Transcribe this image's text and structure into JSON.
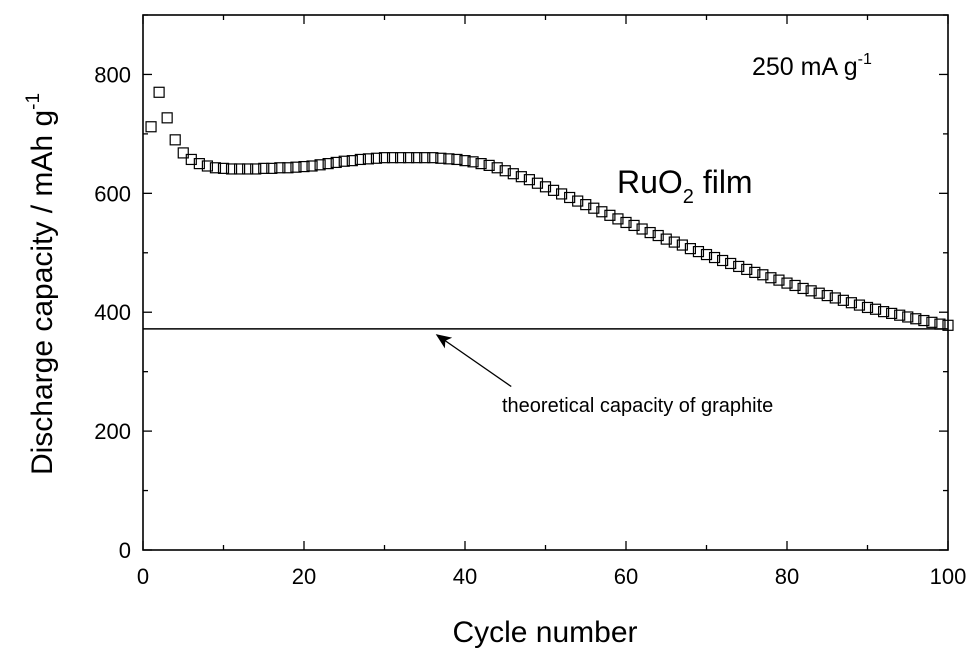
{
  "chart_data": {
    "type": "scatter",
    "xlabel": "Cycle number",
    "ylabel": "Discharge capacity / mAh g",
    "ylabel_superscript": "-1",
    "xlim": [
      0,
      100
    ],
    "ylim": [
      0,
      900
    ],
    "x_ticks": [
      "0",
      "20",
      "40",
      "60",
      "80",
      "100"
    ],
    "y_ticks": [
      "0",
      "200",
      "400",
      "600",
      "800"
    ],
    "grid": false,
    "condition_label": {
      "text": "250 mA g",
      "superscript": "-1"
    },
    "series": [
      {
        "label_main": "RuO",
        "label_sub": "2",
        "label_rest": " film",
        "marker": "open-square",
        "x": [
          1,
          2,
          3,
          4,
          5,
          6,
          7,
          8,
          9,
          10,
          11,
          12,
          13,
          14,
          15,
          16,
          17,
          18,
          19,
          20,
          21,
          22,
          23,
          24,
          25,
          26,
          27,
          28,
          29,
          30,
          31,
          32,
          33,
          34,
          35,
          36,
          37,
          38,
          39,
          40,
          41,
          42,
          43,
          44,
          45,
          46,
          47,
          48,
          49,
          50,
          51,
          52,
          53,
          54,
          55,
          56,
          57,
          58,
          59,
          60,
          61,
          62,
          63,
          64,
          65,
          66,
          67,
          68,
          69,
          70,
          71,
          72,
          73,
          74,
          75,
          76,
          77,
          78,
          79,
          80,
          81,
          82,
          83,
          84,
          85,
          86,
          87,
          88,
          89,
          90,
          91,
          92,
          93,
          94,
          95,
          96,
          97,
          98,
          99,
          100
        ],
        "y": [
          712,
          770,
          727,
          690,
          668,
          657,
          650,
          646,
          643,
          642,
          641,
          641,
          641,
          641,
          642,
          642,
          643,
          643,
          644,
          645,
          646,
          648,
          650,
          652,
          654,
          655,
          657,
          658,
          659,
          660,
          660,
          660,
          660,
          660,
          660,
          660,
          659,
          658,
          657,
          655,
          653,
          650,
          647,
          643,
          638,
          633,
          628,
          623,
          617,
          611,
          605,
          599,
          593,
          587,
          581,
          575,
          569,
          563,
          557,
          551,
          546,
          540,
          534,
          529,
          523,
          518,
          513,
          507,
          502,
          497,
          492,
          487,
          482,
          477,
          472,
          467,
          463,
          458,
          454,
          449,
          445,
          440,
          436,
          432,
          428,
          424,
          420,
          416,
          412,
          408,
          405,
          401,
          398,
          395,
          392,
          389,
          386,
          383,
          380,
          378
        ]
      },
      {
        "name": "theoretical capacity of graphite",
        "type": "hline",
        "y": 372
      }
    ],
    "annotations": [
      {
        "text": "theoretical capacity of graphite",
        "arrow_from": [
          45,
          275
        ],
        "arrow_to": [
          36,
          372
        ]
      }
    ]
  }
}
